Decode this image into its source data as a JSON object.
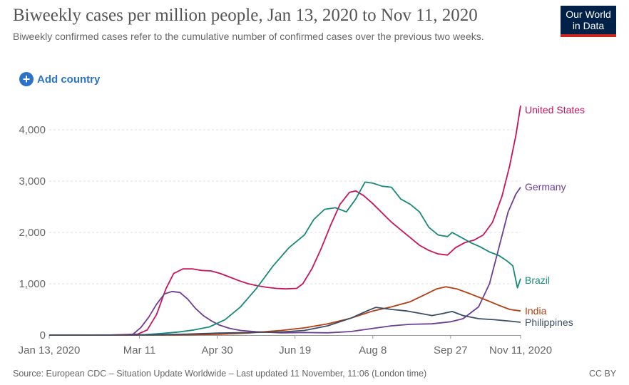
{
  "header": {
    "title": "Biweekly cases per million people, Jan 13, 2020 to Nov 11, 2020",
    "subtitle": "Biweekly confirmed cases refer to the cumulative number of confirmed cases over the previous two weeks.",
    "logo_line1": "Our World",
    "logo_line2": "in Data"
  },
  "controls": {
    "add_country_label": "Add country",
    "add_icon": "plus-circle-icon"
  },
  "footer": {
    "source": "Source: European CDC – Situation Update Worldwide – Last updated 11 November, 11:06 (London time)",
    "license": "CC BY"
  },
  "chart_data": {
    "type": "line",
    "title": "Biweekly cases per million people, Jan 13, 2020 to Nov 11, 2020",
    "xlabel": "",
    "ylabel": "",
    "x_ticks": [
      "Jan 13, 2020",
      "Mar 11",
      "Apr 30",
      "Jun 19",
      "Aug 8",
      "Sep 27",
      "Nov 11, 2020"
    ],
    "y_ticks": [
      0,
      1000,
      2000,
      3000,
      4000
    ],
    "y_tick_labels": [
      "0",
      "1,000",
      "2,000",
      "3,000",
      "4,000"
    ],
    "xlim": [
      "2020-01-13",
      "2020-11-11"
    ],
    "ylim": [
      0,
      4500
    ],
    "grid": "horizontal dashed",
    "legend": "inline labels at line ends",
    "series": [
      {
        "name": "United States",
        "color": "#c9135e",
        "points": [
          [
            "2020-01-13",
            0
          ],
          [
            "2020-02-20",
            0
          ],
          [
            "2020-03-10",
            20
          ],
          [
            "2020-03-16",
            100
          ],
          [
            "2020-03-22",
            400
          ],
          [
            "2020-03-28",
            900
          ],
          [
            "2020-04-02",
            1200
          ],
          [
            "2020-04-08",
            1290
          ],
          [
            "2020-04-14",
            1290
          ],
          [
            "2020-04-20",
            1260
          ],
          [
            "2020-04-26",
            1250
          ],
          [
            "2020-05-02",
            1200
          ],
          [
            "2020-05-08",
            1130
          ],
          [
            "2020-05-14",
            1060
          ],
          [
            "2020-05-20",
            1000
          ],
          [
            "2020-05-26",
            960
          ],
          [
            "2020-06-01",
            930
          ],
          [
            "2020-06-07",
            910
          ],
          [
            "2020-06-13",
            900
          ],
          [
            "2020-06-20",
            910
          ],
          [
            "2020-06-24",
            1000
          ],
          [
            "2020-06-30",
            1300
          ],
          [
            "2020-07-06",
            1700
          ],
          [
            "2020-07-12",
            2150
          ],
          [
            "2020-07-18",
            2550
          ],
          [
            "2020-07-24",
            2780
          ],
          [
            "2020-07-28",
            2810
          ],
          [
            "2020-08-02",
            2720
          ],
          [
            "2020-08-08",
            2560
          ],
          [
            "2020-08-14",
            2380
          ],
          [
            "2020-08-20",
            2200
          ],
          [
            "2020-08-26",
            2050
          ],
          [
            "2020-09-01",
            1900
          ],
          [
            "2020-09-07",
            1750
          ],
          [
            "2020-09-13",
            1650
          ],
          [
            "2020-09-19",
            1580
          ],
          [
            "2020-09-25",
            1560
          ],
          [
            "2020-09-30",
            1700
          ],
          [
            "2020-10-06",
            1800
          ],
          [
            "2020-10-12",
            1850
          ],
          [
            "2020-10-18",
            1950
          ],
          [
            "2020-10-24",
            2200
          ],
          [
            "2020-10-30",
            2700
          ],
          [
            "2020-11-04",
            3300
          ],
          [
            "2020-11-08",
            3900
          ],
          [
            "2020-11-11",
            4470
          ]
        ]
      },
      {
        "name": "Germany",
        "color": "#6d3e91",
        "points": [
          [
            "2020-01-13",
            0
          ],
          [
            "2020-03-01",
            0
          ],
          [
            "2020-03-07",
            20
          ],
          [
            "2020-03-12",
            150
          ],
          [
            "2020-03-17",
            350
          ],
          [
            "2020-03-22",
            600
          ],
          [
            "2020-03-27",
            800
          ],
          [
            "2020-04-01",
            850
          ],
          [
            "2020-04-06",
            830
          ],
          [
            "2020-04-11",
            700
          ],
          [
            "2020-04-16",
            520
          ],
          [
            "2020-04-21",
            380
          ],
          [
            "2020-04-26",
            280
          ],
          [
            "2020-05-01",
            200
          ],
          [
            "2020-05-08",
            130
          ],
          [
            "2020-05-15",
            90
          ],
          [
            "2020-05-25",
            65
          ],
          [
            "2020-06-10",
            45
          ],
          [
            "2020-06-25",
            50
          ],
          [
            "2020-07-10",
            45
          ],
          [
            "2020-07-25",
            70
          ],
          [
            "2020-08-08",
            130
          ],
          [
            "2020-08-20",
            180
          ],
          [
            "2020-09-01",
            210
          ],
          [
            "2020-09-15",
            220
          ],
          [
            "2020-09-27",
            260
          ],
          [
            "2020-10-05",
            320
          ],
          [
            "2020-10-15",
            550
          ],
          [
            "2020-10-22",
            1000
          ],
          [
            "2020-10-28",
            1700
          ],
          [
            "2020-11-03",
            2400
          ],
          [
            "2020-11-08",
            2750
          ],
          [
            "2020-11-11",
            2880
          ]
        ]
      },
      {
        "name": "Brazil",
        "color": "#18897b",
        "points": [
          [
            "2020-01-13",
            0
          ],
          [
            "2020-03-05",
            0
          ],
          [
            "2020-03-15",
            10
          ],
          [
            "2020-03-25",
            30
          ],
          [
            "2020-04-05",
            60
          ],
          [
            "2020-04-15",
            100
          ],
          [
            "2020-04-25",
            160
          ],
          [
            "2020-05-05",
            300
          ],
          [
            "2020-05-15",
            550
          ],
          [
            "2020-05-25",
            900
          ],
          [
            "2020-06-05",
            1350
          ],
          [
            "2020-06-15",
            1700
          ],
          [
            "2020-06-25",
            1950
          ],
          [
            "2020-07-01",
            2250
          ],
          [
            "2020-07-08",
            2450
          ],
          [
            "2020-07-15",
            2480
          ],
          [
            "2020-07-22",
            2400
          ],
          [
            "2020-07-28",
            2650
          ],
          [
            "2020-08-03",
            2980
          ],
          [
            "2020-08-08",
            2960
          ],
          [
            "2020-08-14",
            2900
          ],
          [
            "2020-08-20",
            2880
          ],
          [
            "2020-08-26",
            2650
          ],
          [
            "2020-09-01",
            2550
          ],
          [
            "2020-09-07",
            2400
          ],
          [
            "2020-09-13",
            2100
          ],
          [
            "2020-09-19",
            1950
          ],
          [
            "2020-09-25",
            1920
          ],
          [
            "2020-09-28",
            2000
          ],
          [
            "2020-10-04",
            1900
          ],
          [
            "2020-10-10",
            1800
          ],
          [
            "2020-10-16",
            1720
          ],
          [
            "2020-10-22",
            1620
          ],
          [
            "2020-10-28",
            1550
          ],
          [
            "2020-11-02",
            1450
          ],
          [
            "2020-11-06",
            1350
          ],
          [
            "2020-11-09",
            920
          ],
          [
            "2020-11-11",
            1100
          ]
        ]
      },
      {
        "name": "India",
        "color": "#b43e11",
        "points": [
          [
            "2020-01-13",
            0
          ],
          [
            "2020-04-01",
            2
          ],
          [
            "2020-05-01",
            15
          ],
          [
            "2020-05-20",
            40
          ],
          [
            "2020-06-10",
            90
          ],
          [
            "2020-06-25",
            140
          ],
          [
            "2020-07-10",
            220
          ],
          [
            "2020-07-25",
            330
          ],
          [
            "2020-08-08",
            470
          ],
          [
            "2020-08-20",
            550
          ],
          [
            "2020-09-01",
            650
          ],
          [
            "2020-09-10",
            780
          ],
          [
            "2020-09-18",
            900
          ],
          [
            "2020-09-24",
            940
          ],
          [
            "2020-10-01",
            900
          ],
          [
            "2020-10-10",
            800
          ],
          [
            "2020-10-20",
            680
          ],
          [
            "2020-10-28",
            580
          ],
          [
            "2020-11-04",
            500
          ],
          [
            "2020-11-11",
            470
          ]
        ]
      },
      {
        "name": "Philippines",
        "color": "#3c4e66",
        "points": [
          [
            "2020-01-13",
            0
          ],
          [
            "2020-03-20",
            5
          ],
          [
            "2020-04-10",
            20
          ],
          [
            "2020-05-01",
            40
          ],
          [
            "2020-05-20",
            50
          ],
          [
            "2020-06-10",
            60
          ],
          [
            "2020-06-25",
            90
          ],
          [
            "2020-07-10",
            180
          ],
          [
            "2020-07-25",
            330
          ],
          [
            "2020-08-05",
            480
          ],
          [
            "2020-08-10",
            540
          ],
          [
            "2020-08-20",
            500
          ],
          [
            "2020-08-30",
            470
          ],
          [
            "2020-09-08",
            420
          ],
          [
            "2020-09-15",
            380
          ],
          [
            "2020-09-22",
            420
          ],
          [
            "2020-09-28",
            460
          ],
          [
            "2020-10-05",
            380
          ],
          [
            "2020-10-15",
            320
          ],
          [
            "2020-10-25",
            300
          ],
          [
            "2020-11-05",
            270
          ],
          [
            "2020-11-11",
            250
          ]
        ]
      }
    ]
  }
}
